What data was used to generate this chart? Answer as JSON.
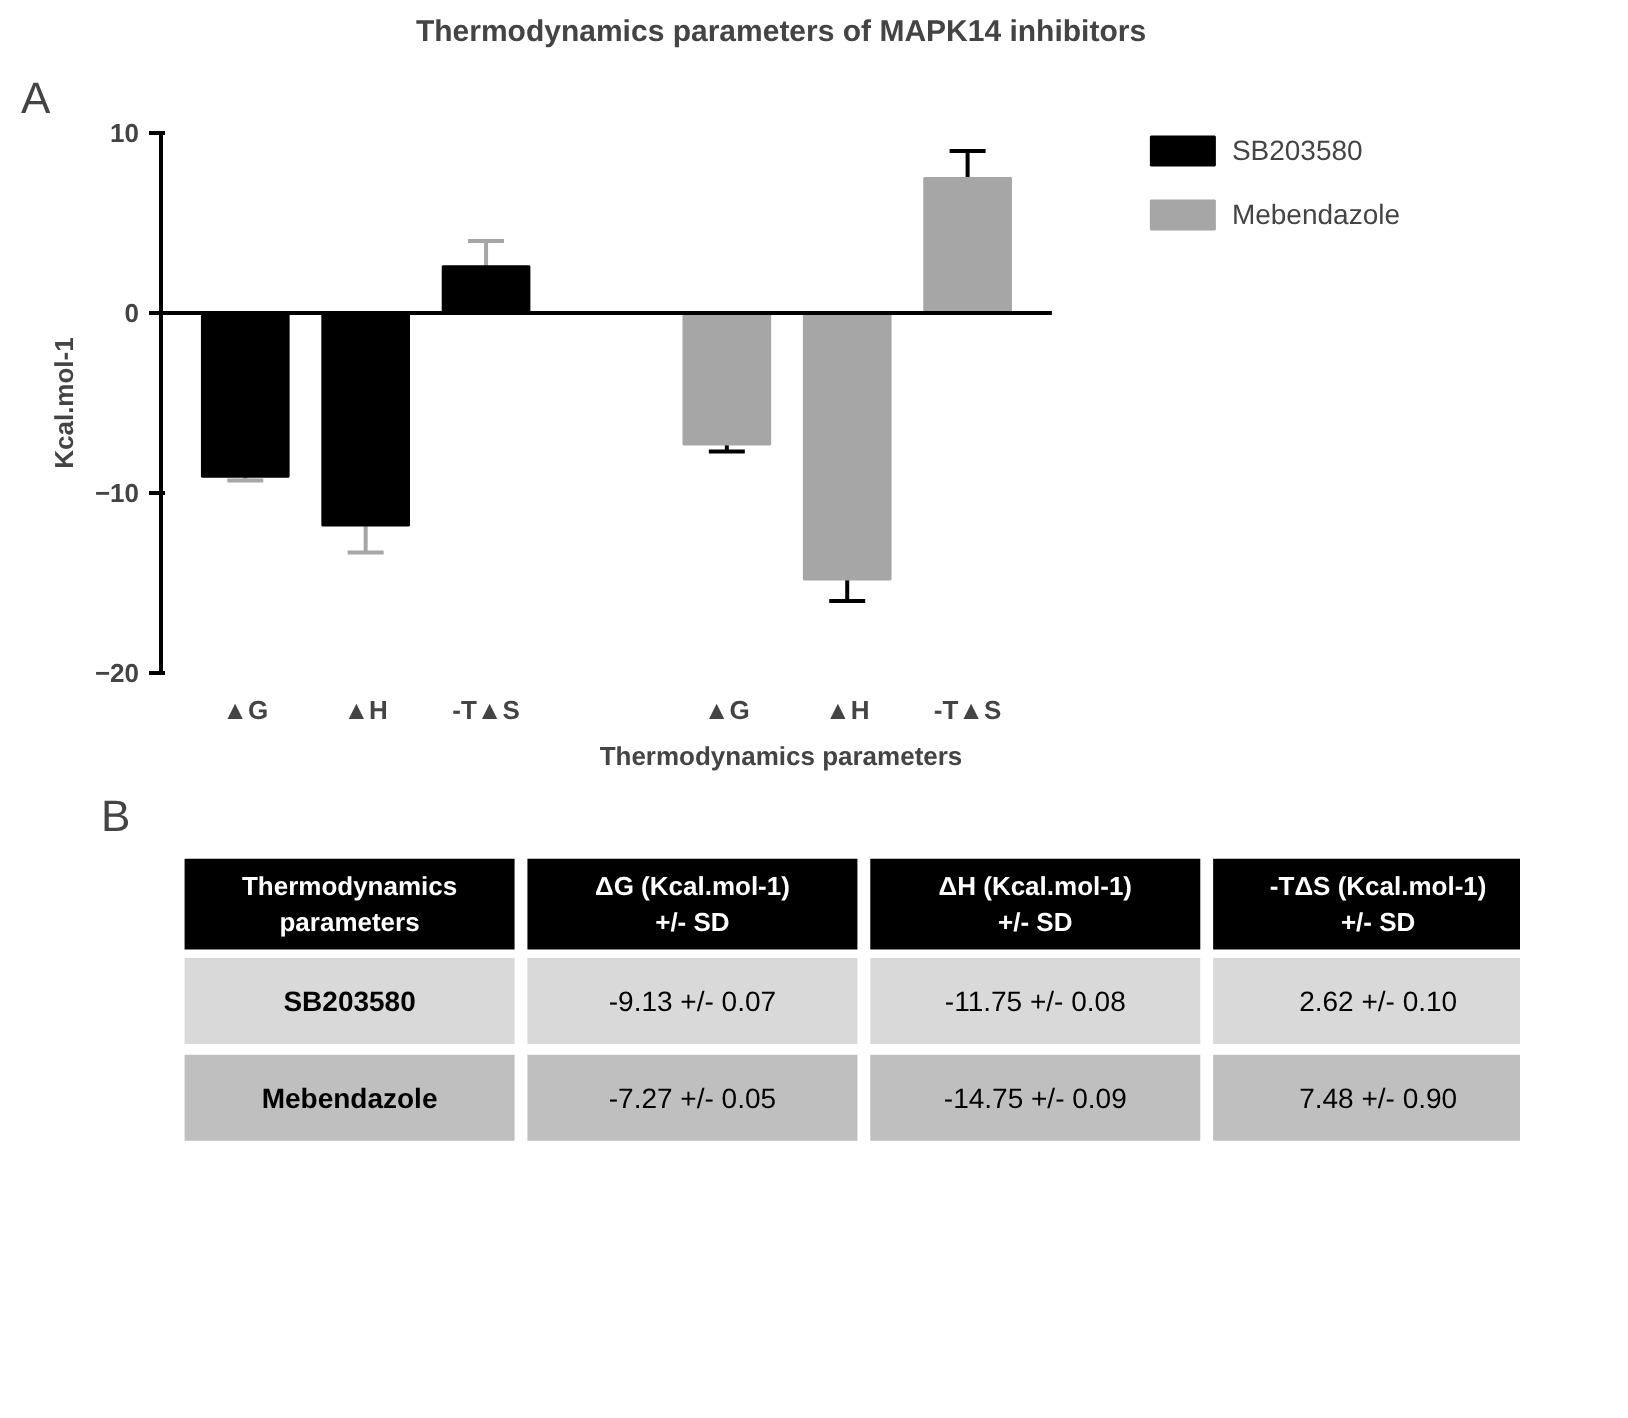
{
  "chart_data": {
    "type": "bar",
    "title": "Thermodynamics parameters of MAPK14 inhibitors",
    "xlabel": "Thermodynamics parameters",
    "ylabel": "Kcal.mol-1",
    "categories": [
      "▲G",
      "▲H",
      "-T▲S",
      null,
      "▲G",
      "▲H",
      "-T▲S"
    ],
    "series": [
      {
        "name": "SB203580",
        "color": "#000000",
        "values": [
          -9.1,
          -11.8,
          2.6,
          null,
          null,
          null,
          null
        ],
        "errors": [
          0.2,
          1.5,
          1.4,
          null,
          null,
          null,
          null
        ]
      },
      {
        "name": "Mebendazole",
        "color": "#a6a6a6",
        "values": [
          null,
          null,
          null,
          null,
          -7.3,
          -14.8,
          7.5
        ],
        "errors": [
          null,
          null,
          null,
          null,
          0.4,
          1.2,
          1.5
        ]
      }
    ],
    "ylim": [
      -20,
      10
    ],
    "yticks": [
      -20,
      -10,
      0,
      10
    ],
    "grid": false,
    "legend": "right",
    "ref_lines": [
      {
        "axis": "y",
        "value": 0
      }
    ],
    "annotations": [
      "A",
      "B",
      "Thermodynamics\nparameters",
      "ΔG (Kcal.mol-1)\n+/- SD",
      "ΔH (Kcal.mol-1)\n+/- SD",
      "-TΔS (Kcal.mol-1)\n+/- SD",
      "SB203580",
      "-9.13 +/- 0.07",
      "-11.75 +/- 0.08",
      "2.62 +/- 0.10",
      "Mebendazole",
      "-7.27 +/- 0.05",
      "-14.75 +/- 0.09",
      "7.48 +/- 0.90"
    ]
  }
}
